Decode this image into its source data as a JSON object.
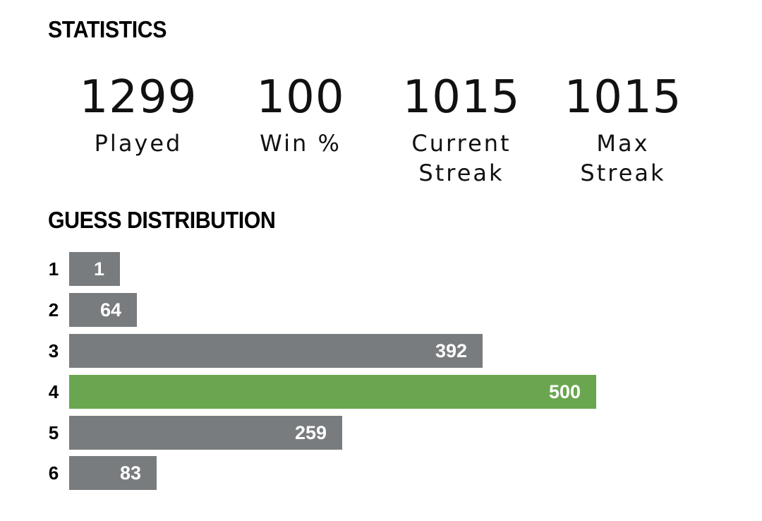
{
  "statistics": {
    "heading": "STATISTICS",
    "items": [
      {
        "value": "1299",
        "label": "Played"
      },
      {
        "value": "100",
        "label": "Win %"
      },
      {
        "value": "1015",
        "label": "Current\nStreak"
      },
      {
        "value": "1015",
        "label": "Max\nStreak"
      }
    ]
  },
  "guess_distribution": {
    "heading": "GUESS DISTRIBUTION",
    "highlight_color": "#6aa64f",
    "bar_color": "#787c7e",
    "rows": [
      {
        "guess": "1",
        "count": 1,
        "count_label": "1",
        "highlight": false
      },
      {
        "guess": "2",
        "count": 64,
        "count_label": "64",
        "highlight": false
      },
      {
        "guess": "3",
        "count": 392,
        "count_label": "392",
        "highlight": false
      },
      {
        "guess": "4",
        "count": 500,
        "count_label": "500",
        "highlight": true
      },
      {
        "guess": "5",
        "count": 259,
        "count_label": "259",
        "highlight": false
      },
      {
        "guess": "6",
        "count": 83,
        "count_label": "83",
        "highlight": false
      }
    ]
  }
}
